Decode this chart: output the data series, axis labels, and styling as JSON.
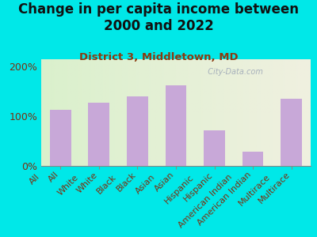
{
  "title": "Change in per capita income between\n2000 and 2022",
  "subtitle": "District 3, Middletown, MD",
  "categories": [
    "All",
    "White",
    "Black",
    "Asian",
    "Hispanic",
    "American Indian",
    "Multirace"
  ],
  "values": [
    113,
    128,
    140,
    163,
    72,
    28,
    135
  ],
  "bar_color": "#c8a8d8",
  "background_outer": "#00e8e8",
  "background_inner_left": "#daf0cc",
  "background_inner_right": "#f0f0e0",
  "title_color": "#111111",
  "subtitle_color": "#8b3a10",
  "tick_label_color": "#7a3010",
  "ylabel_ticks": [
    0,
    100,
    200
  ],
  "ylabel_labels": [
    "0%",
    "100%",
    "200%"
  ],
  "ylim": [
    0,
    215
  ],
  "watermark": "  City-Data.com",
  "watermark_color": "#a0aab8",
  "title_fontsize": 12,
  "subtitle_fontsize": 9.5
}
